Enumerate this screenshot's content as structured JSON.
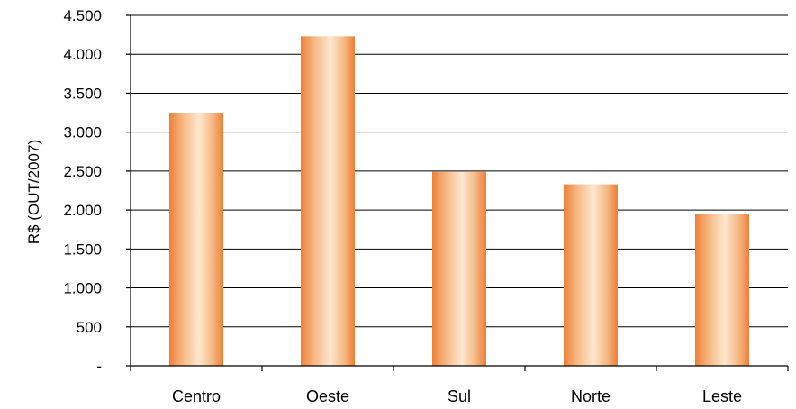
{
  "colors": {
    "bar_edge": "#ef7f37",
    "bar_mid": "#f6b883",
    "bar_center": "#fde7cf",
    "grid": "#000000",
    "axis": "#000000",
    "background": "#ffffff"
  },
  "chart_data": {
    "type": "bar",
    "categories": [
      "Centro",
      "Oeste",
      "Sul",
      "Norte",
      "Leste"
    ],
    "values": [
      3250,
      4230,
      2490,
      2330,
      1950
    ],
    "ylabel": "R$ (OUT/2007)",
    "xlabel": "",
    "ylim": [
      0,
      4500
    ],
    "yticks": [
      0,
      500,
      1000,
      1500,
      2000,
      2500,
      3000,
      3500,
      4000,
      4500
    ],
    "ytick_labels": [
      "-",
      "500",
      "1.000",
      "1.500",
      "2.000",
      "2.500",
      "3.000",
      "3.500",
      "4.000",
      "4.500"
    ],
    "grid": true,
    "legend": "none"
  }
}
